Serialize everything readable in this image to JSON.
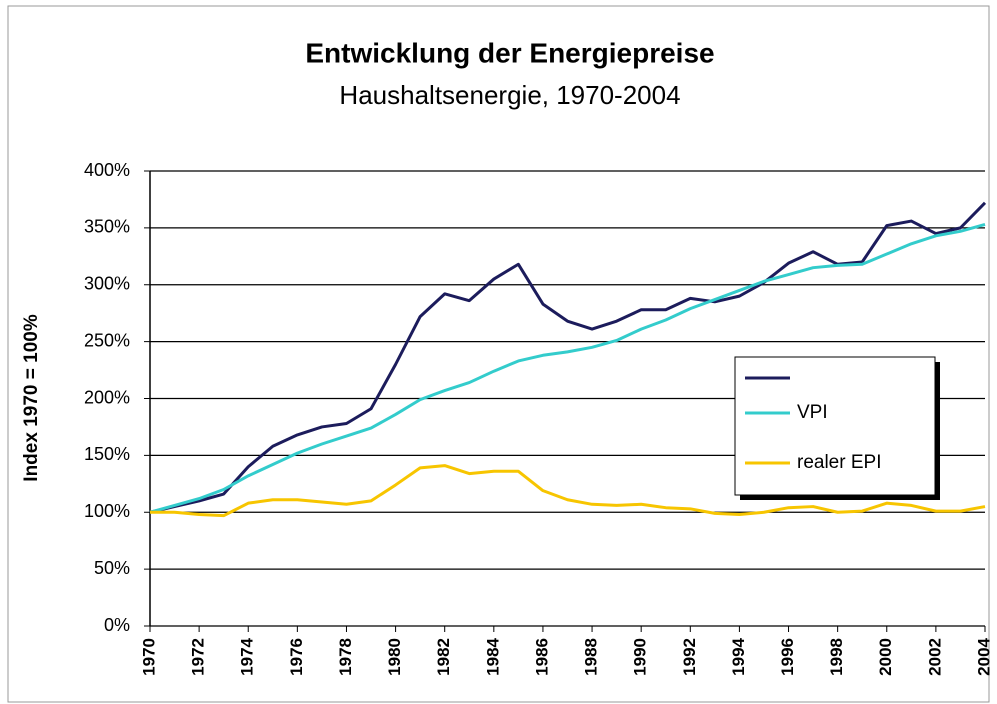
{
  "chart_data": {
    "type": "line",
    "title": "Entwicklung der Energiepreise",
    "subtitle": "Haushaltsenergie, 1970-2004",
    "y_label": "Index 1970 = 100%",
    "x": [
      1970,
      1971,
      1972,
      1973,
      1974,
      1975,
      1976,
      1977,
      1978,
      1979,
      1980,
      1981,
      1982,
      1983,
      1984,
      1985,
      1986,
      1987,
      1988,
      1989,
      1990,
      1991,
      1992,
      1993,
      1994,
      1995,
      1996,
      1997,
      1998,
      1999,
      2000,
      2001,
      2002,
      2003,
      2004
    ],
    "series": [
      {
        "color": "#1c1c5c",
        "values": [
          100,
          105,
          110,
          116,
          140,
          158,
          168,
          175,
          178,
          191,
          230,
          272,
          292,
          286,
          305,
          318,
          283,
          268,
          261,
          268,
          278,
          278,
          288,
          285,
          290,
          302,
          319,
          329,
          318,
          320,
          352,
          356,
          345,
          350,
          372
        ]
      },
      {
        "name": "VPI",
        "color": "#33cccc",
        "values": [
          100,
          106,
          112,
          120,
          132,
          142,
          152,
          160,
          167,
          174,
          186,
          199,
          207,
          214,
          224,
          233,
          238,
          241,
          245,
          251,
          261,
          269,
          279,
          287,
          295,
          303,
          309,
          315,
          317,
          318,
          327,
          336,
          343,
          347,
          353
        ]
      },
      {
        "name": "realer EPI",
        "color": "#f7c500",
        "values": [
          100,
          100,
          98,
          97,
          108,
          111,
          111,
          109,
          107,
          110,
          124,
          139,
          141,
          134,
          136,
          136,
          119,
          111,
          107,
          106,
          107,
          104,
          103,
          99,
          98,
          100,
          104,
          105,
          100,
          101,
          108,
          106,
          101,
          101,
          105
        ]
      }
    ],
    "xlim": [
      1970,
      2004
    ],
    "xticks": [
      1970,
      1972,
      1974,
      1976,
      1978,
      1980,
      1982,
      1984,
      1986,
      1988,
      1990,
      1992,
      1994,
      1996,
      1998,
      2000,
      2002,
      2004
    ],
    "ylim": [
      0,
      400
    ],
    "yticks": [
      {
        "value": 0,
        "label": "0%"
      },
      {
        "value": 50,
        "label": "50%"
      },
      {
        "value": 100,
        "label": "100%"
      },
      {
        "value": 150,
        "label": "150%"
      },
      {
        "value": 200,
        "label": "200%"
      },
      {
        "value": 250,
        "label": "250%"
      },
      {
        "value": 300,
        "label": "300%"
      },
      {
        "value": 350,
        "label": "350%"
      },
      {
        "value": 400,
        "label": "400%"
      }
    ],
    "grid": true,
    "legend": "right"
  }
}
